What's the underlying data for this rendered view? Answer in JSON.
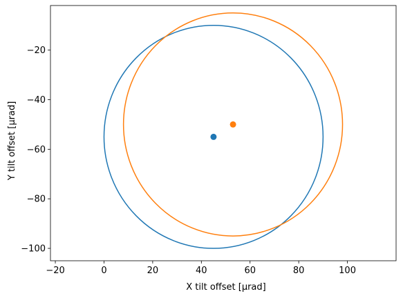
{
  "chart_data": {
    "type": "scatter",
    "xlabel": "X tilt offset [µrad]",
    "ylabel": "Y tilt offset [µrad]",
    "xlim": [
      -22,
      120
    ],
    "ylim": [
      -105,
      -2
    ],
    "xticks": [
      -20,
      0,
      20,
      40,
      60,
      80,
      100
    ],
    "yticks": [
      -100,
      -80,
      -60,
      -40,
      -20
    ],
    "xtick_labels": [
      "−20",
      "0",
      "20",
      "40",
      "60",
      "80",
      "100"
    ],
    "ytick_labels": [
      "−100",
      "−80",
      "−60",
      "−40",
      "−20"
    ],
    "grid": false,
    "legend": false,
    "series": [
      {
        "color": "#1f77b4",
        "center": [
          45,
          -55
        ],
        "radius": 45
      },
      {
        "color": "#ff7f0e",
        "center": [
          53,
          -50
        ],
        "radius": 45
      }
    ]
  }
}
